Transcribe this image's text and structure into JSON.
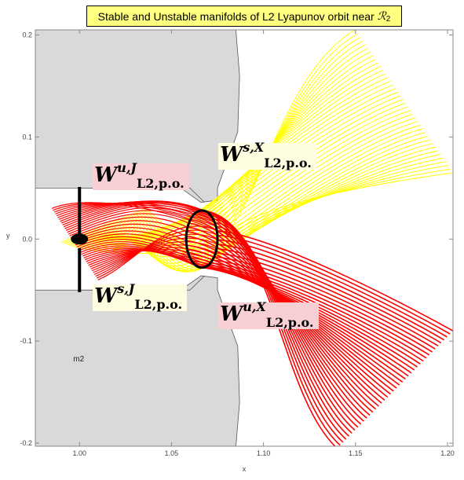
{
  "chart_data": {
    "type": "line",
    "title_prefix": "Stable and Unstable manifolds of L2 Lyapunov orbit near",
    "title_region": "ℛ",
    "title_region_sub": "2",
    "xlabel": "x",
    "ylabel": "y",
    "xlim": [
      0.976,
      1.203
    ],
    "ylim": [
      -0.203,
      0.205
    ],
    "x_ticks": [
      1.0,
      1.05,
      1.1,
      1.15,
      1.2
    ],
    "x_tick_labels": [
      "1.00",
      "1.05",
      "1.10",
      "1.15",
      "1.20"
    ],
    "y_ticks": [
      -0.2,
      -0.1,
      0.0,
      0.1,
      0.2
    ],
    "y_tick_labels": [
      "-0.2",
      "-0.1",
      "0.0",
      "0.1",
      "0.2"
    ],
    "grid": false,
    "m2_label": "m2",
    "m2_position": [
      1.0,
      0.0
    ],
    "lyapunov_orbit": {
      "center": [
        1.0665,
        0.0
      ],
      "rx": 0.0085,
      "ry": 0.028,
      "color": "#000000"
    },
    "forbidden_region": {
      "color": "#d9d9d9",
      "upper_boundary": [
        [
          0.976,
          0.05
        ],
        [
          1.055,
          0.05
        ],
        [
          1.066,
          0.036
        ],
        [
          1.075,
          0.038
        ],
        [
          1.075,
          0.05
        ],
        [
          1.086,
          0.105
        ],
        [
          1.087,
          0.16
        ],
        [
          1.085,
          0.205
        ]
      ],
      "lower_boundary": [
        [
          0.976,
          -0.05
        ],
        [
          1.055,
          -0.05
        ],
        [
          1.066,
          -0.036
        ],
        [
          1.075,
          -0.038
        ],
        [
          1.075,
          -0.05
        ],
        [
          1.086,
          -0.105
        ],
        [
          1.087,
          -0.16
        ],
        [
          1.085,
          -0.203
        ]
      ]
    },
    "neck_lines": {
      "upper": [
        [
          1.0,
          0.05
        ],
        [
          1.06,
          0.05
        ],
        [
          1.068,
          0.036
        ]
      ],
      "lower": [
        [
          1.0,
          -0.05
        ],
        [
          1.06,
          -0.05
        ],
        [
          1.068,
          -0.036
        ]
      ]
    },
    "black_bars": [
      {
        "x": 1.0,
        "y": [
          0.005,
          0.051
        ]
      },
      {
        "x": 1.0,
        "y": [
          -0.009,
          -0.052
        ]
      }
    ],
    "series": [
      {
        "color": "#ffff00",
        "n_curves": 40,
        "upper_branch_end": {
          "x": [
            1.15,
            1.203
          ],
          "y": [
            0.205,
            0.065
          ]
        },
        "lower_branch_end": {
          "x": [
            0.99,
            1.035
          ],
          "y": [
            -0.002,
            0.03
          ]
        }
      },
      {
        "color": "#ff0000",
        "n_curves": 40,
        "right_branch_end": {
          "x": [
            1.14,
            1.203
          ],
          "y": [
            -0.205,
            -0.09
          ]
        },
        "left_branch_end": {
          "x": [
            0.985,
            1.01
          ],
          "y": [
            0.03,
            -0.04
          ]
        }
      }
    ],
    "manifold_labels": [
      {
        "main": "W",
        "sup": "u,J",
        "sub": "L2,p.o.",
        "box": "pink"
      },
      {
        "main": "W",
        "sup": "s,J",
        "sub": "L2,p.o.",
        "box": "cream"
      },
      {
        "main": "W",
        "sup": "s,X",
        "sub": "L2,p.o.",
        "box": "cream"
      },
      {
        "main": "W",
        "sup": "u,X",
        "sub": "L2,p.o.",
        "box": "pink"
      }
    ]
  }
}
